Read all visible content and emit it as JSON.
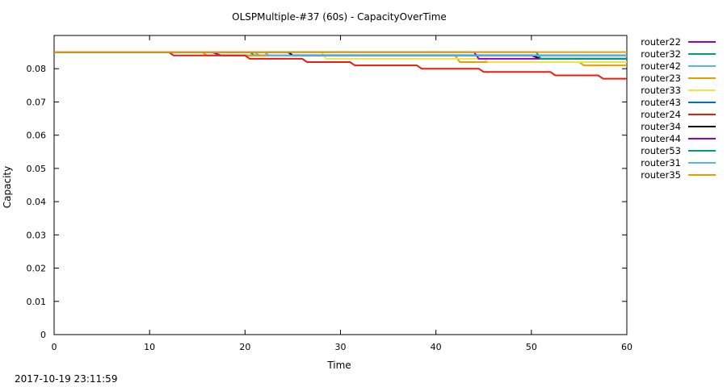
{
  "chart_data": {
    "type": "line",
    "title": "OLSPMultiple-#37 (60s) - CapacityOverTime",
    "xlabel": "Time",
    "ylabel": "Capacity",
    "xlim": [
      0,
      60
    ],
    "ylim": [
      0,
      0.09
    ],
    "x_ticks": [
      "0",
      "10",
      "20",
      "30",
      "40",
      "50",
      "60"
    ],
    "y_ticks": [
      "0",
      "0.01",
      "0.02",
      "0.03",
      "0.04",
      "0.05",
      "0.06",
      "0.07",
      "0.08"
    ],
    "grid": false,
    "legend_position": "right",
    "series": [
      {
        "name": "router22",
        "color": "#9400d3",
        "x": [
          0,
          16.5,
          17.5,
          60
        ],
        "y": [
          0.085,
          0.085,
          0.084,
          0.084
        ]
      },
      {
        "name": "router32",
        "color": "#009e73",
        "x": [
          0,
          20.5,
          21,
          60
        ],
        "y": [
          0.085,
          0.085,
          0.084,
          0.084
        ]
      },
      {
        "name": "router42",
        "color": "#56b4e9",
        "x": [
          0,
          21,
          21.5,
          60
        ],
        "y": [
          0.085,
          0.085,
          0.084,
          0.084
        ]
      },
      {
        "name": "router23",
        "color": "#e69f00",
        "x": [
          0,
          15.5,
          16,
          42,
          42.5,
          55,
          55.5,
          60
        ],
        "y": [
          0.085,
          0.085,
          0.084,
          0.084,
          0.082,
          0.082,
          0.081,
          0.081
        ]
      },
      {
        "name": "router33",
        "color": "#f0e442",
        "x": [
          0,
          28,
          28.5,
          45,
          45.5,
          60
        ],
        "y": [
          0.085,
          0.085,
          0.083,
          0.083,
          0.082,
          0.082
        ]
      },
      {
        "name": "router43",
        "color": "#0072b2",
        "x": [
          0,
          24.5,
          25,
          60
        ],
        "y": [
          0.085,
          0.085,
          0.084,
          0.084
        ]
      },
      {
        "name": "router24",
        "color": "#e51e10",
        "x": [
          0,
          12,
          12.5,
          20,
          20.5,
          26,
          26.5,
          31,
          31.5,
          38,
          38.5,
          44.5,
          45,
          52,
          52.5,
          57,
          57.5,
          60
        ],
        "y": [
          0.085,
          0.085,
          0.084,
          0.084,
          0.083,
          0.083,
          0.082,
          0.082,
          0.081,
          0.081,
          0.08,
          0.08,
          0.079,
          0.079,
          0.078,
          0.078,
          0.077,
          0.077
        ]
      },
      {
        "name": "router34",
        "color": "#000000",
        "x": [
          0,
          24.5,
          25,
          50,
          51,
          60
        ],
        "y": [
          0.085,
          0.085,
          0.084,
          0.084,
          0.083,
          0.083
        ]
      },
      {
        "name": "router44",
        "color": "#9400d3",
        "x": [
          0,
          44,
          44.5,
          60
        ],
        "y": [
          0.085,
          0.085,
          0.083,
          0.083
        ]
      },
      {
        "name": "router53",
        "color": "#009e73",
        "x": [
          0,
          50.5,
          51,
          60
        ],
        "y": [
          0.085,
          0.085,
          0.083,
          0.083
        ]
      },
      {
        "name": "router31",
        "color": "#56b4e9",
        "x": [
          0,
          22,
          22.5,
          60
        ],
        "y": [
          0.085,
          0.085,
          0.084,
          0.084
        ]
      },
      {
        "name": "router35",
        "color": "#e69f00",
        "x": [
          0,
          60
        ],
        "y": [
          0.085,
          0.085
        ]
      }
    ]
  },
  "footer": {
    "timestamp": "2017-10-19 23:11:59"
  }
}
